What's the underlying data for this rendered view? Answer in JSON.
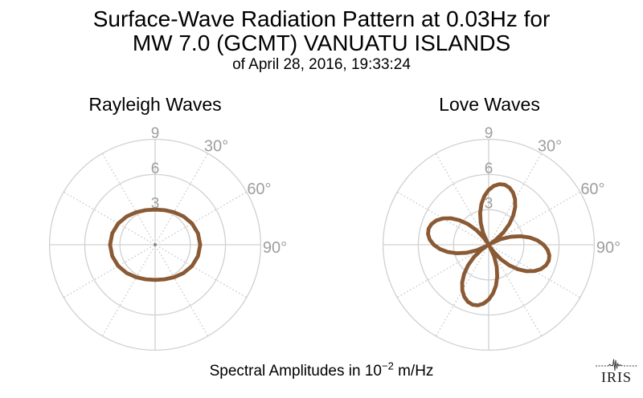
{
  "header": {
    "title_line1": "Surface-Wave Radiation Pattern at 0.03Hz for",
    "title_line2": "MW 7.0 (GCMT) VANUATU ISLANDS",
    "subtitle": "of April 28, 2016, 19:33:24"
  },
  "caption": {
    "text_before_exponent": "Spectral Amplitudes in 10",
    "exponent": "−2",
    "text_after_exponent": " m/Hz"
  },
  "logo": {
    "text": "IRIS",
    "icon": "seismogram-icon"
  },
  "colors": {
    "background": "#ffffff",
    "text": "#000000",
    "pattern_stroke": "#8a5a35",
    "grid": "#d0d0d0",
    "grid_dotted": "#cccccc",
    "tick_label": "#9e9e9e",
    "center_dot": "#8f8f8f"
  },
  "chart_data": [
    {
      "type": "polar_line",
      "title": "Rayleigh Waves",
      "r_ticks": [
        3,
        6,
        9
      ],
      "r_tick_labels": [
        "3",
        "6",
        "9"
      ],
      "r_max": 9,
      "angle_ticks": [
        {
          "angle_deg": 30,
          "label": "30°"
        },
        {
          "angle_deg": 60,
          "label": "60°"
        },
        {
          "angle_deg": 90,
          "label": "90°"
        }
      ],
      "solid_radial_angles_deg": [
        0,
        90,
        180,
        270
      ],
      "dotted_radial_angles_deg": [
        30,
        60,
        120,
        150,
        210,
        240,
        300,
        330
      ],
      "series": {
        "name": "rayleigh-radiation-pattern",
        "azimuth_start_deg": 0,
        "azimuth_step_deg": 15,
        "r": [
          3.0,
          3.06,
          3.21,
          3.42,
          3.63,
          3.78,
          3.84,
          3.78,
          3.63,
          3.42,
          3.21,
          3.06,
          3.0,
          3.06,
          3.21,
          3.42,
          3.63,
          3.78,
          3.84,
          3.78,
          3.63,
          3.42,
          3.21,
          3.06
        ]
      }
    },
    {
      "type": "polar_line",
      "title": "Love Waves",
      "r_ticks": [
        3,
        6,
        9
      ],
      "r_tick_labels": [
        "3",
        "6",
        "9"
      ],
      "r_max": 9,
      "angle_ticks": [
        {
          "angle_deg": 30,
          "label": "30°"
        },
        {
          "angle_deg": 60,
          "label": "60°"
        },
        {
          "angle_deg": 90,
          "label": "90°"
        }
      ],
      "solid_radial_angles_deg": [
        0,
        90,
        180,
        270
      ],
      "dotted_radial_angles_deg": [
        30,
        60,
        120,
        150,
        210,
        240,
        300,
        330
      ],
      "series": {
        "name": "love-radiation-pattern",
        "azimuth_start_deg": 0,
        "azimuth_step_deg": 5,
        "r": [
          4.68,
          5.04,
          5.25,
          5.3,
          5.18,
          4.91,
          4.49,
          3.94,
          3.26,
          2.49,
          1.64,
          0.74,
          0.18,
          1.1,
          1.99,
          2.81,
          3.55,
          4.18,
          4.68,
          5.04,
          5.25,
          5.3,
          5.18,
          4.91,
          4.49,
          3.94,
          3.26,
          2.49,
          1.64,
          0.74,
          0.18,
          1.1,
          1.99,
          2.81,
          3.55,
          4.18,
          4.68,
          5.04,
          5.25,
          5.3,
          5.18,
          4.91,
          4.49,
          3.94,
          3.26,
          2.49,
          1.64,
          0.74,
          0.18,
          1.1,
          1.99,
          2.81,
          3.55,
          4.18,
          4.68,
          5.04,
          5.25,
          5.3,
          5.18,
          4.91,
          4.49,
          3.94,
          3.26,
          2.49,
          1.64,
          0.74,
          0.18,
          1.1,
          1.99,
          2.81,
          3.55,
          4.18
        ]
      }
    }
  ]
}
